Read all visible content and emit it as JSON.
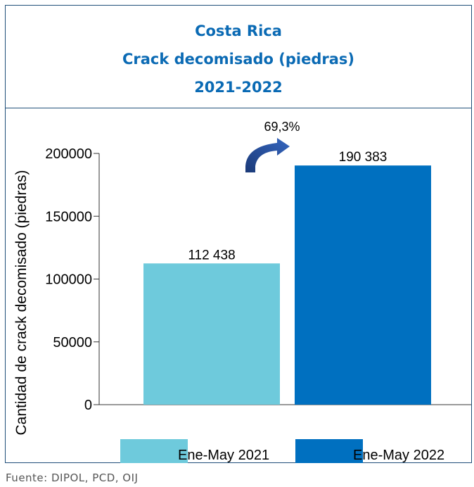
{
  "title": {
    "line1": "Costa Rica",
    "line2": "Crack decomisado (piedras)",
    "line3": "2021-2022"
  },
  "chart_data": {
    "type": "bar",
    "categories": [
      "Ene-May 2021",
      "Ene-May 2022"
    ],
    "values": [
      112438,
      190383
    ],
    "value_labels": [
      "112 438",
      "190 383"
    ],
    "ylabel": "Cantidad de crack decomisado (piedras)",
    "ylim": [
      0,
      200000
    ],
    "yticks": [
      0,
      50000,
      100000,
      150000,
      200000
    ],
    "colors": [
      "#6ecadc",
      "#0070c0"
    ],
    "legend": [
      {
        "label": "Ene-May 2021",
        "color": "#6ecadc"
      },
      {
        "label": "Ene-May 2022",
        "color": "#0070c0"
      }
    ],
    "legend_position": "bottom",
    "annotation": "69,3%",
    "grid": false
  },
  "source": "Fuente: DIPOL, PCD, OIJ"
}
